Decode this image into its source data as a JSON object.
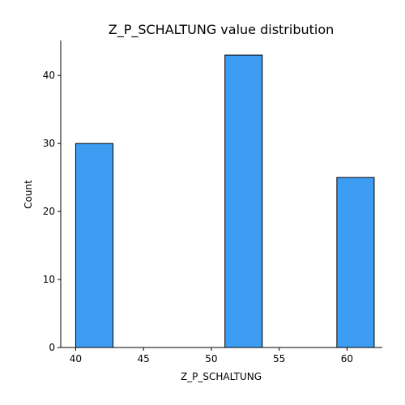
{
  "chart_data": {
    "type": "bar",
    "title": "Z_P_SCHALTUNG value distribution",
    "xlabel": "Z_P_SCHALTUNG",
    "ylabel": "Count",
    "xlim": [
      38.9,
      62.6
    ],
    "ylim": [
      0,
      45.15
    ],
    "xticks": [
      40,
      45,
      50,
      55,
      60
    ],
    "yticks": [
      0,
      10,
      20,
      30,
      40
    ],
    "bars": [
      {
        "x0": 40.0,
        "x1": 42.75,
        "count": 30
      },
      {
        "x0": 51.0,
        "x1": 53.75,
        "count": 43
      },
      {
        "x0": 59.25,
        "x1": 62.0,
        "count": 25
      }
    ],
    "bar_color": "#3d9df3",
    "grid": false,
    "legend": "none"
  }
}
